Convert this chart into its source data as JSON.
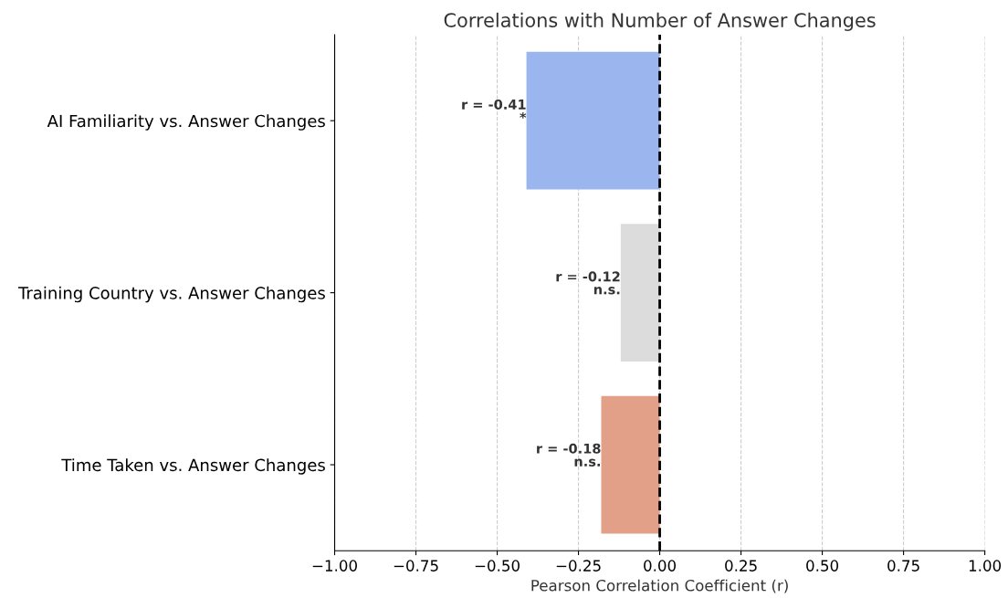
{
  "chart_data": {
    "type": "bar",
    "orientation": "horizontal",
    "title": "Correlations with Number of Answer Changes",
    "xlabel": "Pearson Correlation Coefficient (r)",
    "categories": [
      "AI Familiarity vs. Answer Changes",
      "Training Country vs. Answer Changes",
      "Time Taken vs. Answer Changes"
    ],
    "values": [
      -0.41,
      -0.12,
      -0.18
    ],
    "colors": [
      "#9bb5ef",
      "#dcdcdc",
      "#e3a088"
    ],
    "value_labels": [
      "r = -0.41\n*",
      "r = -0.12\nn.s.",
      "r = -0.18\nn.s."
    ],
    "xlim": [
      -1.0,
      1.0
    ],
    "xticks": [
      {
        "value": -1.0,
        "label": "−1.00"
      },
      {
        "value": -0.75,
        "label": "−0.75"
      },
      {
        "value": -0.5,
        "label": "−0.50"
      },
      {
        "value": -0.25,
        "label": "−0.25"
      },
      {
        "value": 0.0,
        "label": "0.00"
      },
      {
        "value": 0.25,
        "label": "0.25"
      },
      {
        "value": 0.5,
        "label": "0.50"
      },
      {
        "value": 0.75,
        "label": "0.75"
      },
      {
        "value": 1.0,
        "label": "1.00"
      }
    ],
    "ref_lines": [
      {
        "axis": "x",
        "value": 0.0,
        "color": "#000000",
        "line_style": "dashed"
      }
    ],
    "grid": "x"
  }
}
